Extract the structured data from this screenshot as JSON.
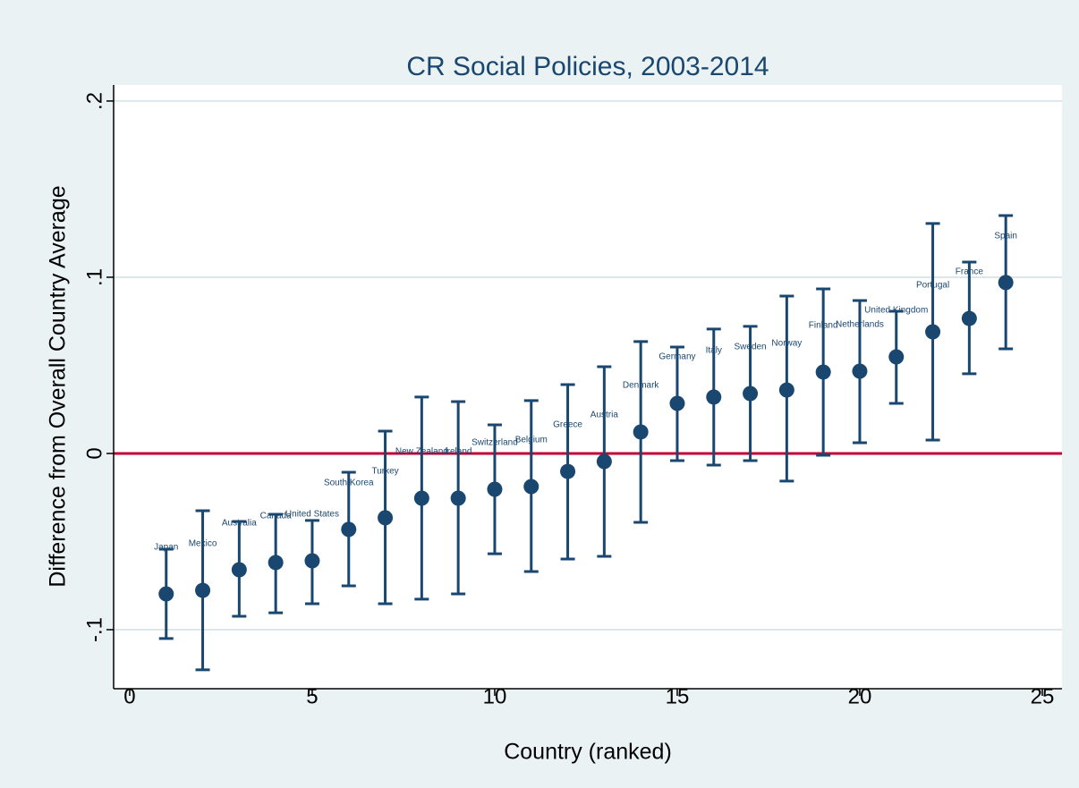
{
  "chart_data": {
    "type": "scatter-errorbar",
    "title": "CR Social Policies, 2003-2014",
    "x_label": "Country (ranked)",
    "y_label": "Difference from Overall Country Average",
    "x": [
      1,
      2,
      3,
      4,
      5,
      6,
      7,
      8,
      9,
      10,
      11,
      12,
      13,
      14,
      15,
      16,
      17,
      18,
      19,
      20,
      21,
      22,
      23,
      24
    ],
    "labels": [
      "Japan",
      "Mexico",
      "Australia",
      "Canada",
      "United States",
      "South Korea",
      "Turkey",
      "New Zealand",
      "Ireland",
      "Switzerland",
      "Belgium",
      "Greece",
      "Austria",
      "Denmark",
      "Germany",
      "Italy",
      "Sweden",
      "Norway",
      "Finland",
      "Netherlands",
      "United Kingdom",
      "Portugal",
      "France",
      "Spain"
    ],
    "values": [
      -0.0797,
      -0.0777,
      -0.066,
      -0.0619,
      -0.0609,
      -0.0431,
      -0.0365,
      -0.0254,
      -0.0254,
      -0.0203,
      -0.0188,
      -0.0102,
      -0.0046,
      0.0122,
      0.0284,
      0.032,
      0.034,
      0.036,
      0.0462,
      0.0467,
      0.0548,
      0.069,
      0.0766,
      0.097
    ],
    "lower": [
      -0.105,
      -0.1228,
      -0.0924,
      -0.0904,
      -0.0853,
      -0.0751,
      -0.0853,
      -0.0827,
      -0.0797,
      -0.0569,
      -0.067,
      -0.0599,
      -0.0584,
      -0.0391,
      -0.0041,
      -0.0066,
      -0.0041,
      -0.0157,
      -0.001,
      0.0061,
      0.0284,
      0.0076,
      0.0452,
      0.0594
    ],
    "upper": [
      -0.0543,
      -0.0325,
      -0.0386,
      -0.0345,
      -0.038,
      -0.0107,
      0.0127,
      0.032,
      0.0294,
      0.0162,
      0.03,
      0.0391,
      0.0492,
      0.0635,
      0.0604,
      0.0706,
      0.0721,
      0.0893,
      0.0934,
      0.0868,
      0.0807,
      0.1305,
      0.1086,
      0.135
    ],
    "color": "#1a476f",
    "xlim": [
      -0.44,
      25.54
    ],
    "ylim": [
      -0.1335,
      0.2091
    ],
    "xticks": [
      0,
      5,
      10,
      15,
      20,
      25
    ],
    "yticks": [
      {
        "value": -0.1,
        "label": "-.1"
      },
      0,
      {
        "value": 0.1,
        "label": ".1"
      },
      {
        "value": 0.2,
        "label": ".2"
      }
    ],
    "grid": true,
    "reference_line": {
      "value": 0,
      "color": "#c10534"
    }
  }
}
